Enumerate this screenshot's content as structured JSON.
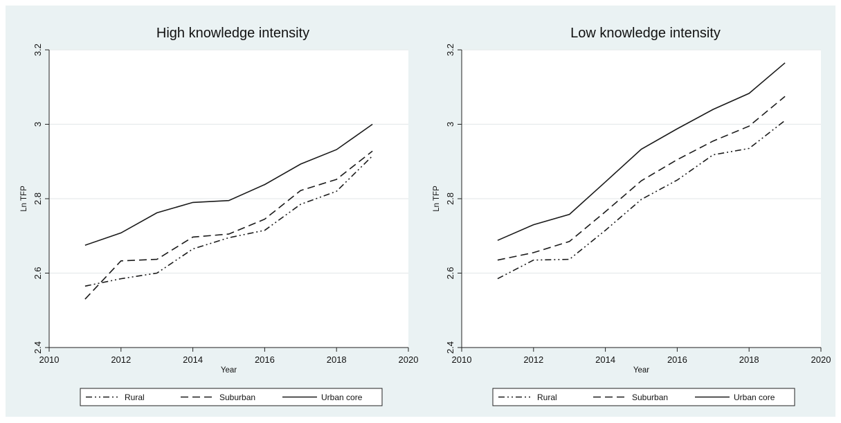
{
  "chart_data": [
    {
      "type": "line",
      "title": "High knowledge intensity",
      "xlabel": "Year",
      "ylabel": "Ln TFP",
      "xlim": [
        2010,
        2020
      ],
      "ylim": [
        2.4,
        3.2
      ],
      "x_ticks": [
        "2010",
        "2012",
        "2014",
        "2016",
        "2018",
        "2020"
      ],
      "y_ticks": [
        "2.4",
        "2.6",
        "2.8",
        "3",
        "3.2"
      ],
      "grid": true,
      "legend_position": "bottom",
      "x": [
        2011,
        2012,
        2013,
        2014,
        2015,
        2016,
        2017,
        2018,
        2019
      ],
      "series": [
        {
          "name": "Rural",
          "style": "dash-dot-dot",
          "values": [
            2.565,
            2.585,
            2.6,
            2.665,
            2.695,
            2.715,
            2.785,
            2.82,
            2.915
          ]
        },
        {
          "name": "Suburban",
          "style": "dash",
          "values": [
            2.53,
            2.633,
            2.637,
            2.697,
            2.705,
            2.745,
            2.822,
            2.852,
            2.928
          ]
        },
        {
          "name": "Urban core",
          "style": "solid",
          "values": [
            2.675,
            2.708,
            2.762,
            2.79,
            2.795,
            2.838,
            2.893,
            2.932,
            3.0
          ]
        }
      ]
    },
    {
      "type": "line",
      "title": "Low knowledge intensity",
      "xlabel": "Year",
      "ylabel": "Ln TFP",
      "xlim": [
        2010,
        2020
      ],
      "ylim": [
        2.4,
        3.2
      ],
      "x_ticks": [
        "2010",
        "2012",
        "2014",
        "2016",
        "2018",
        "2020"
      ],
      "y_ticks": [
        "2.4",
        "2.6",
        "2.8",
        "3",
        "3.2"
      ],
      "grid": true,
      "legend_position": "bottom",
      "x": [
        2011,
        2012,
        2013,
        2014,
        2015,
        2016,
        2017,
        2018,
        2019
      ],
      "series": [
        {
          "name": "Rural",
          "style": "dash-dot-dot",
          "values": [
            2.585,
            2.635,
            2.637,
            2.715,
            2.798,
            2.85,
            2.918,
            2.935,
            3.01
          ]
        },
        {
          "name": "Suburban",
          "style": "dash",
          "values": [
            2.635,
            2.655,
            2.685,
            2.765,
            2.848,
            2.905,
            2.955,
            2.995,
            3.075
          ]
        },
        {
          "name": "Urban core",
          "style": "solid",
          "values": [
            2.688,
            2.73,
            2.758,
            2.845,
            2.933,
            2.988,
            3.04,
            3.083,
            3.165
          ]
        }
      ]
    }
  ],
  "colors": {
    "figure_background": "#eaf2f3",
    "plot_background": "#ffffff",
    "line": "#1a1a1a",
    "grid": "#e6ebec"
  }
}
